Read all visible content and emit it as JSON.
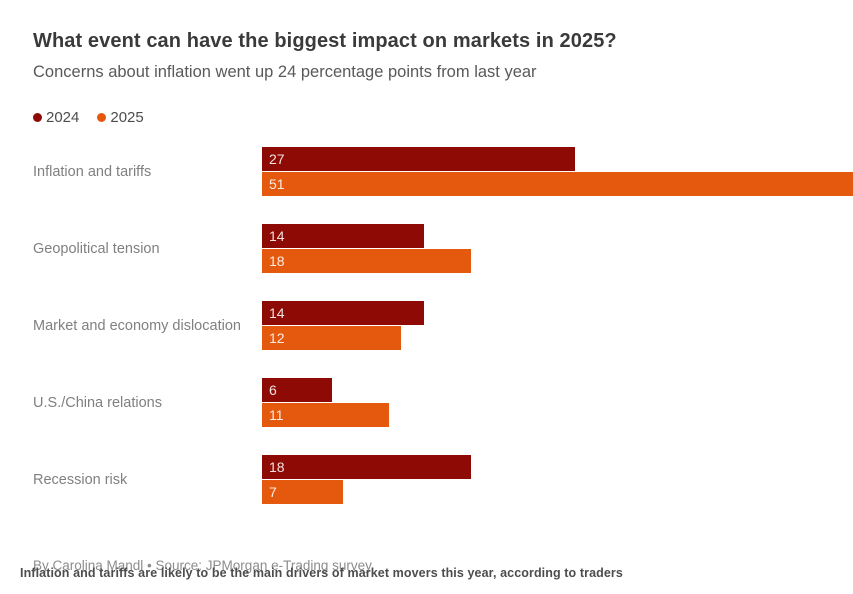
{
  "header": {
    "title": "What event can have the biggest impact on markets in 2025?",
    "subtitle": "Concerns about inflation went up 24 percentage points from last year"
  },
  "legend": [
    {
      "label": "2024",
      "color": "#8E0A04"
    },
    {
      "label": "2025",
      "color": "#E5590F"
    }
  ],
  "chart_data": {
    "type": "bar",
    "orientation": "horizontal",
    "title": "What event can have the biggest impact on markets in 2025?",
    "subtitle": "Concerns about inflation went up 24 percentage points from last year",
    "categories": [
      "Inflation and tariffs",
      "Geopolitical tension",
      "Market and economy dislocation",
      "U.S./China relations",
      "Recession risk"
    ],
    "series": [
      {
        "name": "2024",
        "color": "#8E0A04",
        "values": [
          27,
          14,
          14,
          6,
          18
        ]
      },
      {
        "name": "2025",
        "color": "#E5590F",
        "values": [
          51,
          18,
          12,
          11,
          7
        ]
      }
    ],
    "xlim": [
      0,
      51
    ],
    "value_labels": "inside-left",
    "grid": false,
    "legend_position": "top-left"
  },
  "footer": {
    "byline": "By Carolina Mandl • Source: JPMorgan e-Trading survey",
    "caption": "Inflation and tariffs are likely to be the main drivers of market movers this year, according to traders"
  }
}
